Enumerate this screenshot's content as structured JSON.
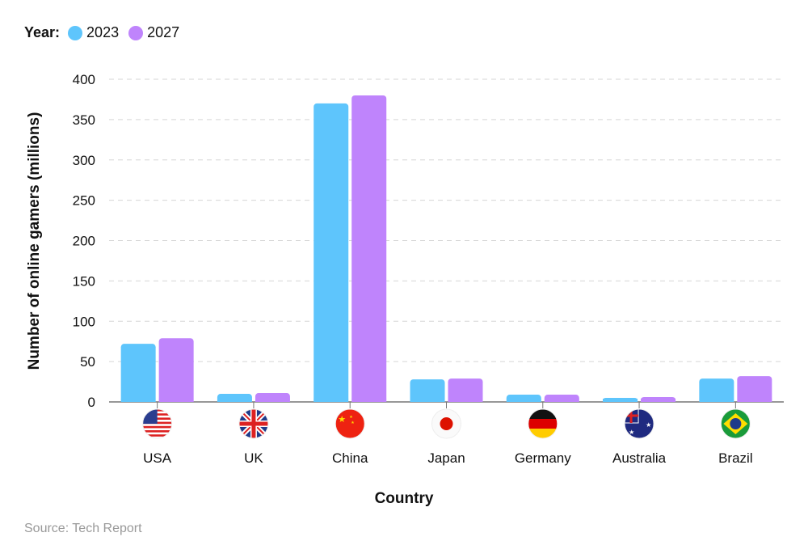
{
  "chart_data": {
    "type": "bar",
    "legend_title": "Year:",
    "legend_placement": "top-left",
    "categories": [
      "USA",
      "UK",
      "China",
      "Japan",
      "Germany",
      "Australia",
      "Brazil"
    ],
    "series": [
      {
        "name": "2023",
        "color": "#5ec5fc",
        "values": [
          72,
          10,
          370,
          28,
          9,
          5,
          29
        ]
      },
      {
        "name": "2027",
        "color": "#bf84fc",
        "values": [
          79,
          11,
          380,
          29,
          9,
          6,
          32
        ]
      }
    ],
    "xlabel": "Country",
    "ylabel": "Number of online gamers (millions)",
    "ylim": [
      0,
      400
    ],
    "yticks": [
      0,
      50,
      100,
      150,
      200,
      250,
      300,
      350,
      400
    ],
    "grid": true,
    "category_icons": [
      "us-flag-icon",
      "uk-flag-icon",
      "china-flag-icon",
      "japan-flag-icon",
      "germany-flag-icon",
      "australia-flag-icon",
      "brazil-flag-icon"
    ]
  },
  "source": "Source: Tech Report"
}
